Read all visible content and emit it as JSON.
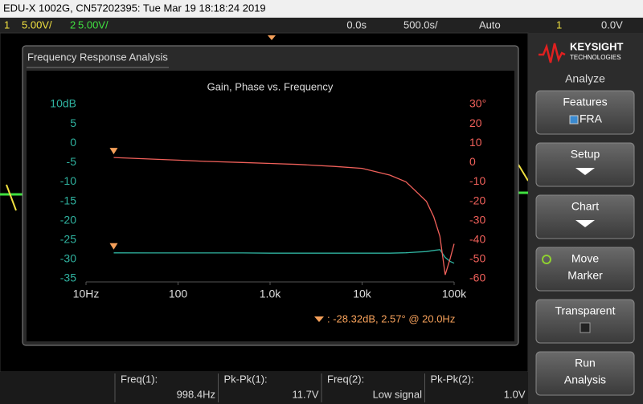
{
  "header": {
    "title": "EDU-X 1002G, CN57202395: Tue Mar 19 18:18:24 2019"
  },
  "status_bar": {
    "ch1": "1",
    "ch1_scale": "5.00V/",
    "ch2": "2",
    "ch2_scale": "5.00V/",
    "delay": "0.0s",
    "time_scale": "500.0s/",
    "trigger_mode": "Auto",
    "trigger_source": "1",
    "trigger_level": "0.0V"
  },
  "panel": {
    "title": "Frequency Response Analysis",
    "marker_readout": ": -28.32dB, 2.57° @ 20.0Hz"
  },
  "chart_data": {
    "type": "line",
    "title": "Gain, Phase vs. Frequency",
    "xscale": "log",
    "grid": false,
    "x": [
      20,
      50,
      100,
      200,
      500,
      1000,
      2000,
      5000,
      10000,
      20000,
      30000,
      50000,
      60000,
      70000,
      80000,
      90000,
      100000
    ],
    "xlim": [
      10,
      100000
    ],
    "xticks": [
      {
        "value": 10,
        "label": "10Hz"
      },
      100,
      {
        "value": 1000,
        "label": "1.0k"
      },
      {
        "value": 10000,
        "label": "10k"
      },
      {
        "value": 100000,
        "label": "100k"
      }
    ],
    "ylim": [
      -35,
      10
    ],
    "yticks": [
      {
        "value": 10,
        "label": "10dB"
      },
      5,
      0,
      -5,
      -10,
      -15,
      -20,
      -25,
      -30,
      -35
    ],
    "y2lim": [
      -60,
      30
    ],
    "y2ticks": [
      {
        "value": 30,
        "label": "30°"
      },
      20,
      10,
      0,
      -10,
      -20,
      -30,
      -40,
      -50,
      -60
    ],
    "series": [
      {
        "color": "#2fb3a0",
        "axis": "y",
        "values": [
          -28.32,
          -28.35,
          -28.35,
          -28.35,
          -28.35,
          -28.4,
          -28.4,
          -28.4,
          -28.4,
          -28.4,
          -28.3,
          -28.0,
          -27.7,
          -27.5,
          -29.5,
          -30.5,
          -31
        ]
      },
      {
        "color": "#f0605a",
        "axis": "y2",
        "values": [
          2.57,
          1.8,
          1.2,
          0.6,
          0,
          -0.5,
          -1,
          -2,
          -3,
          -6.5,
          -10,
          -20,
          -28,
          -38,
          -58,
          -50,
          -42
        ]
      }
    ]
  },
  "measurements": [
    {
      "label": "Freq(1):",
      "value": "998.4Hz"
    },
    {
      "label": "Pk-Pk(1):",
      "value": "11.7V"
    },
    {
      "label": "Freq(2):",
      "value": "Low signal"
    },
    {
      "label": "Pk-Pk(2):",
      "value": "1.0V"
    }
  ],
  "sidebar": {
    "brand": "KEYSIGHT",
    "brand_sub": "TECHNOLOGIES",
    "menu": "Analyze",
    "buttons": [
      {
        "lines": [
          "Features",
          "FRA"
        ]
      },
      {
        "lines": [
          "Setup"
        ]
      },
      {
        "lines": [
          "Chart"
        ]
      },
      {
        "lines": [
          "Move",
          "Marker"
        ]
      },
      {
        "lines": [
          "Transparent"
        ]
      },
      {
        "lines": [
          "Run",
          "Analysis"
        ]
      }
    ]
  }
}
